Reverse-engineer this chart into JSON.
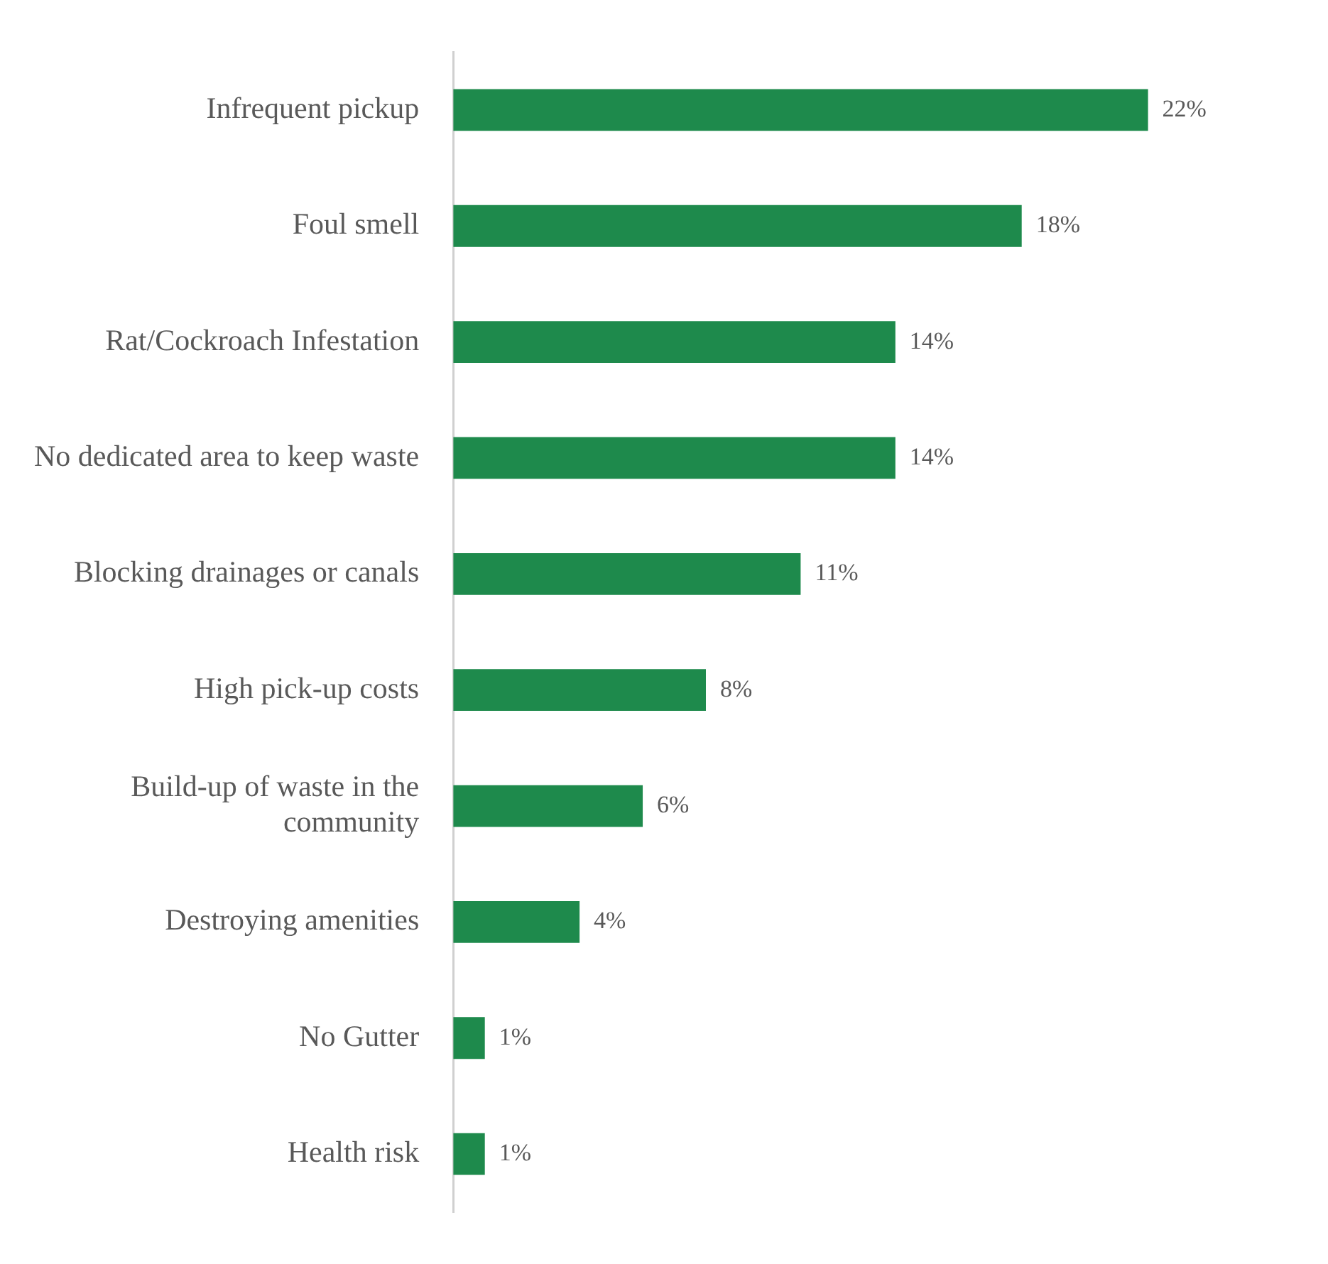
{
  "chart_data": {
    "type": "bar",
    "orientation": "horizontal",
    "categories": [
      "Infrequent pickup",
      "Foul smell",
      "Rat/Cockroach Infestation",
      "No dedicated area to keep waste",
      "Blocking drainages or canals",
      "High pick-up costs",
      "Build-up of waste in the community",
      "Destroying amenities",
      "No Gutter",
      "Health risk"
    ],
    "values": [
      22,
      18,
      14,
      14,
      11,
      8,
      6,
      4,
      1,
      1
    ],
    "value_labels": [
      "22%",
      "18%",
      "14%",
      "14%",
      "11%",
      "8%",
      "6%",
      "4%",
      "1%",
      "1%"
    ],
    "color": "#1e8a4c",
    "grid": false,
    "legend": false,
    "tick_labels": "y"
  }
}
